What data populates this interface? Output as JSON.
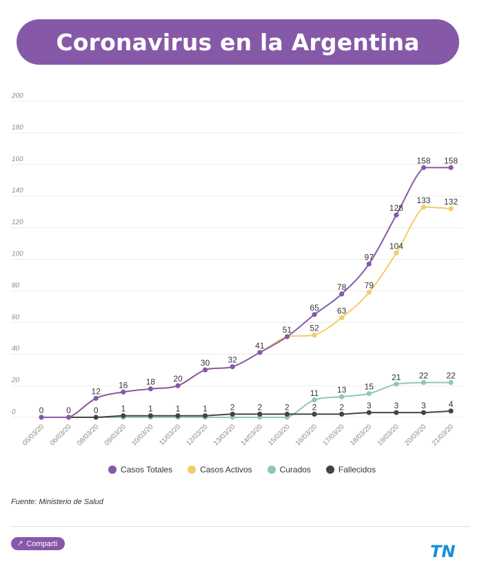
{
  "header": {
    "title": "Coronavirus en la Argentina"
  },
  "chart_data": {
    "type": "line",
    "categories": [
      "05/03/20",
      "06/03/20",
      "08/03/20",
      "09/03/20",
      "10/03/20",
      "11/03/20",
      "12/03/20",
      "13/03/20",
      "14/03/20",
      "15/03/20",
      "16/03/20",
      "17/03/20",
      "18/03/20",
      "19/03/20",
      "20/03/20",
      "21/03/20"
    ],
    "ylim": [
      0,
      200
    ],
    "yticks": [
      0,
      20,
      40,
      60,
      80,
      100,
      120,
      140,
      160,
      180,
      200
    ],
    "grid": true,
    "legend_position": "bottom",
    "series": [
      {
        "name": "Casos Totales",
        "color": "#8659a8",
        "values": [
          0,
          0,
          12,
          16,
          18,
          20,
          30,
          32,
          41,
          51,
          65,
          78,
          97,
          128,
          158,
          158
        ]
      },
      {
        "name": "Casos Activos",
        "color": "#f2cd6b",
        "values": [
          0,
          0,
          12,
          16,
          18,
          20,
          30,
          32,
          41,
          51,
          52,
          63,
          79,
          104,
          133,
          132
        ]
      },
      {
        "name": "Curados",
        "color": "#8ec9a9",
        "values": [
          0,
          0,
          0,
          0,
          0,
          0,
          0,
          0,
          0,
          0,
          11,
          13,
          15,
          21,
          22,
          22
        ]
      },
      {
        "name": "Fallecidos",
        "color": "#444444",
        "values": [
          0,
          0,
          0,
          1,
          1,
          1,
          1,
          2,
          2,
          2,
          2,
          2,
          3,
          3,
          3,
          4
        ]
      }
    ],
    "data_labels": {
      "Casos Totales": [
        "",
        "",
        "",
        "",
        "",
        "",
        "",
        "",
        "",
        "",
        "65",
        "78",
        "97",
        "128",
        "158",
        "158"
      ],
      "Casos Activos": [
        "",
        "",
        "12",
        "16",
        "18",
        "20",
        "30",
        "32",
        "41",
        "51",
        "52",
        "63",
        "79",
        "104",
        "133",
        "132"
      ],
      "Curados": [
        "",
        "",
        "",
        "",
        "",
        "",
        "",
        "",
        "",
        "",
        "11",
        "13",
        "15",
        "21",
        "22",
        "22"
      ],
      "Fallecidos": [
        "0",
        "0",
        "0",
        "1",
        "1",
        "1",
        "1",
        "2",
        "2",
        "2",
        "2",
        "2",
        "3",
        "3",
        "3",
        "4"
      ]
    }
  },
  "footer": {
    "source": "Fuente: Ministerio de Salud",
    "share_label": "Comparti",
    "share_icon": "share-icon",
    "logo": "TN"
  }
}
